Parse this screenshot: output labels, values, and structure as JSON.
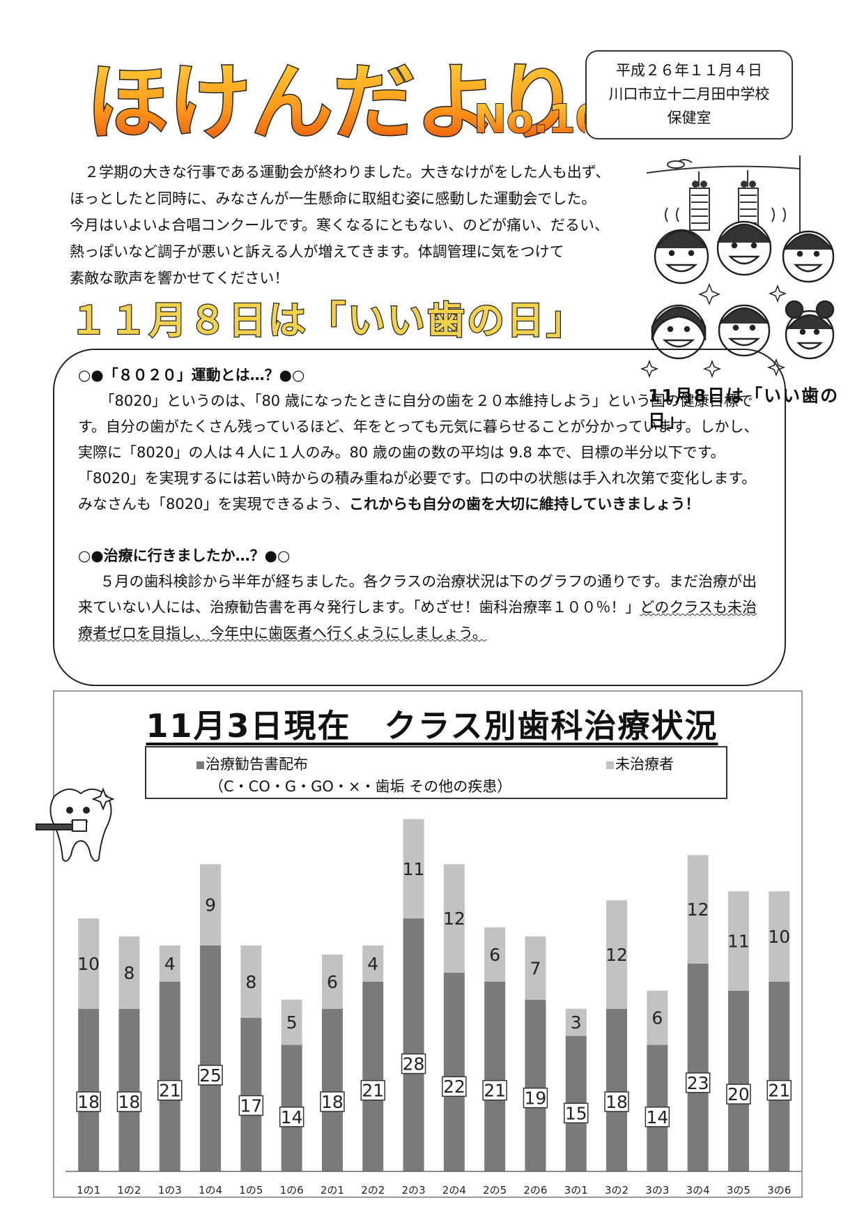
{
  "masthead": {
    "title": "ほけんだより",
    "issue": "No.10"
  },
  "info": {
    "date": "平成２６年１１月４日",
    "school": "川口市立十二月田中学校",
    "office": "保健室"
  },
  "intro": {
    "lines": [
      "　２学期の大きな行事である運動会が終わりました。大きなけがをした人も出ず、",
      "ほっとしたと同時に、みなさんが一生懸命に取組む姿に感動した運動会でした。",
      "今月はいよいよ合唱コンクールです。寒くなるにともない、のどが痛い、だるい、",
      "熱っぽいなど調子が悪いと訴える人が増えてきます。体調管理に気をつけて",
      "素敵な歌声を響かせてください！"
    ]
  },
  "headline": "１１月８日は「いい歯の日」",
  "side_caption": "11月8日は「いい歯の日」",
  "section1": {
    "title": "○●「８０２０」運動とは…？●○",
    "body": "「8020」というのは、「80 歳になったときに自分の歯を２０本維持しよう」という国の健康目標です。自分の歯がたくさん残っているほど、年をとっても元気に暮らせることが分かっています。しかし、実際に「8020」の人は４人に１人のみ。80 歳の歯の数の平均は 9.8 本で、目標の半分以下です。「8020」を実現するには若い時からの積み重ねが必要です。口の中の状態は手入れ次第で変化します。みなさんも「8020」を実現できるよう、",
    "emphasis": "これからも自分の歯を大切に維持していきましょう！"
  },
  "section2": {
    "title": "○●治療に行きましたか…？●○",
    "body": "５月の歯科検診から半年が経ちました。各クラスの治療状況は下のグラフの通りです。まだ治療が出来ていない人には、治療勧告書を再々発行します。「めざせ！歯科治療率１００％！」",
    "underlined": "どのクラスも未治療者ゼロを目指し、今年中に歯医者へ行くようにしましょう。"
  },
  "chart_data": {
    "type": "bar",
    "title": "11月3日現在　クラス別歯科治療状況",
    "legend": {
      "series1_line1": "治療勧告書配布",
      "series1_line2": "（C・CO・G・GO・×・歯垢 その他の疾患）",
      "series2": "未治療者"
    },
    "categories": [
      "1の1",
      "1の2",
      "1の3",
      "1の4",
      "1の5",
      "1の6",
      "2の1",
      "2の2",
      "2の3",
      "2の4",
      "2の5",
      "2の6",
      "3の1",
      "3の2",
      "3の3",
      "3の4",
      "3の5",
      "3の6"
    ],
    "series": [
      {
        "name": "治療勧告書配布",
        "values": [
          18,
          18,
          21,
          25,
          17,
          14,
          18,
          21,
          28,
          22,
          21,
          19,
          15,
          18,
          14,
          23,
          20,
          21
        ],
        "color": "#7a7a7a"
      },
      {
        "name": "未治療者",
        "values": [
          10,
          8,
          4,
          9,
          8,
          5,
          6,
          4,
          11,
          12,
          6,
          7,
          3,
          12,
          6,
          12,
          11,
          10
        ],
        "color": "#c2c2c2"
      }
    ],
    "ylim": [
      0,
      40
    ],
    "grid": false,
    "legend_position": "top"
  }
}
